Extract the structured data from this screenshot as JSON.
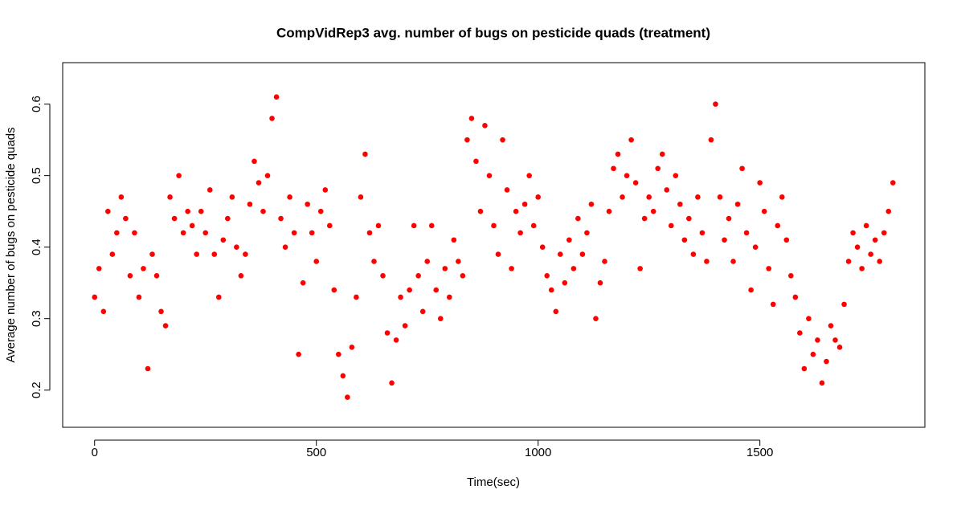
{
  "chart_data": {
    "type": "scatter",
    "title": "CompVidRep3 avg. number of bugs on pesticide quads (treatment)",
    "x_label": "Time(sec)",
    "y_label": "Average number of bugs on pesticide quads",
    "color": "#ff0000",
    "xlim": [
      -72,
      1872
    ],
    "ylim": [
      0.148,
      0.658
    ],
    "xticks": [
      0,
      500,
      1000,
      1500
    ],
    "yticks": [
      0.2,
      0.3,
      0.4,
      0.5,
      0.6
    ],
    "x": [
      0,
      10,
      20,
      30,
      40,
      50,
      60,
      70,
      80,
      90,
      100,
      110,
      120,
      130,
      140,
      150,
      160,
      170,
      180,
      190,
      200,
      210,
      220,
      230,
      240,
      250,
      260,
      270,
      280,
      290,
      300,
      310,
      320,
      330,
      340,
      350,
      360,
      370,
      380,
      390,
      400,
      410,
      420,
      430,
      440,
      450,
      460,
      470,
      480,
      490,
      500,
      510,
      520,
      530,
      540,
      550,
      560,
      570,
      580,
      590,
      600,
      610,
      620,
      630,
      640,
      650,
      660,
      670,
      680,
      690,
      700,
      710,
      720,
      730,
      740,
      750,
      760,
      770,
      780,
      790,
      800,
      810,
      820,
      830,
      840,
      850,
      860,
      870,
      880,
      890,
      900,
      910,
      920,
      930,
      940,
      950,
      960,
      970,
      980,
      990,
      1000,
      1010,
      1020,
      1030,
      1040,
      1050,
      1060,
      1070,
      1080,
      1090,
      1100,
      1110,
      1120,
      1130,
      1140,
      1150,
      1160,
      1170,
      1180,
      1190,
      1200,
      1210,
      1220,
      1230,
      1240,
      1250,
      1260,
      1270,
      1280,
      1290,
      1300,
      1310,
      1320,
      1330,
      1340,
      1350,
      1360,
      1370,
      1380,
      1390,
      1400,
      1410,
      1420,
      1430,
      1440,
      1450,
      1460,
      1470,
      1480,
      1490,
      1500,
      1510,
      1520,
      1530,
      1540,
      1550,
      1560,
      1570,
      1580,
      1590,
      1600,
      1610,
      1620,
      1630,
      1640,
      1650,
      1660,
      1670,
      1680,
      1690,
      1700,
      1710,
      1720,
      1730,
      1740,
      1750,
      1760,
      1770,
      1780,
      1790,
      1800
    ],
    "values": [
      0.33,
      0.37,
      0.31,
      0.45,
      0.39,
      0.42,
      0.47,
      0.44,
      0.36,
      0.42,
      0.33,
      0.37,
      0.23,
      0.39,
      0.36,
      0.31,
      0.29,
      0.47,
      0.44,
      0.5,
      0.42,
      0.45,
      0.43,
      0.39,
      0.45,
      0.42,
      0.48,
      0.39,
      0.33,
      0.41,
      0.44,
      0.47,
      0.4,
      0.36,
      0.39,
      0.46,
      0.52,
      0.49,
      0.45,
      0.5,
      0.58,
      0.61,
      0.44,
      0.4,
      0.47,
      0.42,
      0.25,
      0.35,
      0.46,
      0.42,
      0.38,
      0.45,
      0.48,
      0.43,
      0.34,
      0.25,
      0.22,
      0.19,
      0.26,
      0.33,
      0.47,
      0.53,
      0.42,
      0.38,
      0.43,
      0.36,
      0.28,
      0.21,
      0.27,
      0.33,
      0.29,
      0.34,
      0.43,
      0.36,
      0.31,
      0.38,
      0.43,
      0.34,
      0.3,
      0.37,
      0.33,
      0.41,
      0.38,
      0.36,
      0.55,
      0.58,
      0.52,
      0.45,
      0.57,
      0.5,
      0.43,
      0.39,
      0.55,
      0.48,
      0.37,
      0.45,
      0.42,
      0.46,
      0.5,
      0.43,
      0.47,
      0.4,
      0.36,
      0.34,
      0.31,
      0.39,
      0.35,
      0.41,
      0.37,
      0.44,
      0.39,
      0.42,
      0.46,
      0.3,
      0.35,
      0.38,
      0.45,
      0.51,
      0.53,
      0.47,
      0.5,
      0.55,
      0.49,
      0.37,
      0.44,
      0.47,
      0.45,
      0.51,
      0.53,
      0.48,
      0.43,
      0.5,
      0.46,
      0.41,
      0.44,
      0.39,
      0.47,
      0.42,
      0.38,
      0.55,
      0.6,
      0.47,
      0.41,
      0.44,
      0.38,
      0.46,
      0.51,
      0.42,
      0.34,
      0.4,
      0.49,
      0.45,
      0.37,
      0.32,
      0.43,
      0.47,
      0.41,
      0.36,
      0.33,
      0.28,
      0.23,
      0.3,
      0.25,
      0.27,
      0.21,
      0.24,
      0.29,
      0.27,
      0.26,
      0.32,
      0.38,
      0.42,
      0.4,
      0.37,
      0.43,
      0.39,
      0.41,
      0.38,
      0.42,
      0.45,
      0.49
    ]
  }
}
